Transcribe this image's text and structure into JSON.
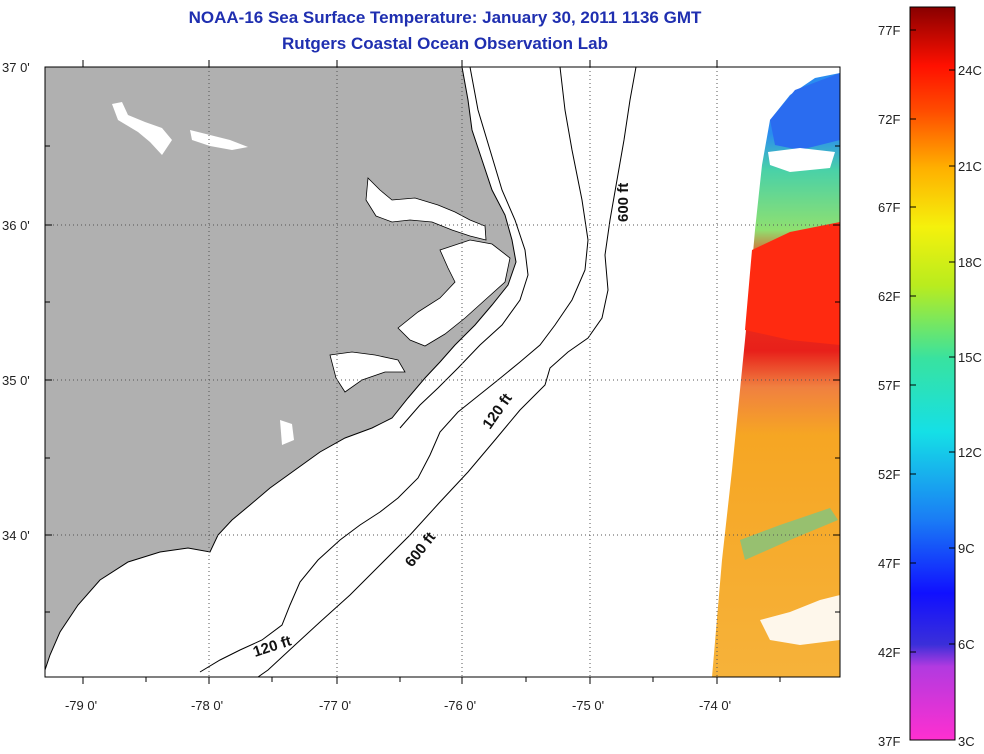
{
  "title": "NOAA-16 Sea Surface Temperature:  January 30, 2011 1136 GMT",
  "subtitle": "Rutgers Coastal Ocean Observation Lab",
  "lat_ticks": [
    "37 0'",
    "36 0'",
    "35 0'",
    "34 0'"
  ],
  "lon_ticks": [
    "-79 0'",
    "-78 0'",
    "-77 0'",
    "-76 0'",
    "-75 0'",
    "-74 0'"
  ],
  "contour_labels": [
    {
      "text": "600 ft"
    },
    {
      "text": "120 ft"
    },
    {
      "text": "600 ft"
    },
    {
      "text": "120 ft"
    }
  ],
  "colorbar": {
    "f_labels": [
      "77F",
      "72F",
      "67F",
      "62F",
      "57F",
      "52F",
      "47F",
      "42F",
      "37F"
    ],
    "c_labels": [
      "24C",
      "21C",
      "18C",
      "15C",
      "12C",
      "9C",
      "6C",
      "3C"
    ]
  },
  "colors": {
    "land": "#b0b0b0",
    "title": "#1f2fb0",
    "hot": "#e8201a",
    "warm": "#f6a623",
    "cool": "#49d1a8",
    "cold": "#2a8cf0"
  }
}
